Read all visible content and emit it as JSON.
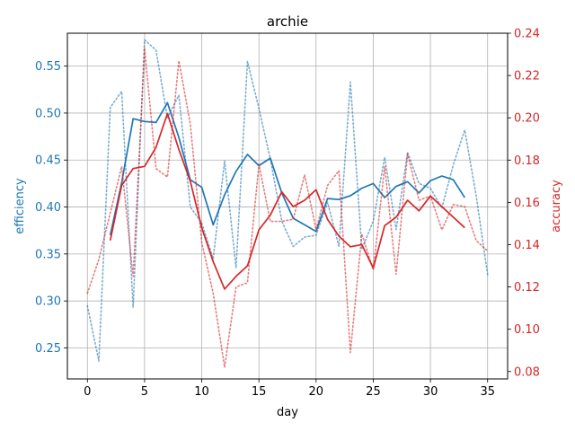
{
  "chart_data": {
    "type": "line",
    "title": "archie",
    "xlabel": "day",
    "ylabel_left": "efficiency",
    "ylabel_right": "accuracy",
    "xlim": [
      -1.75,
      36.75
    ],
    "ylim_left": [
      0.217,
      0.585
    ],
    "ylim_right": [
      0.0765,
      0.24
    ],
    "x_ticks": [
      0,
      5,
      10,
      15,
      20,
      25,
      30,
      35
    ],
    "y_ticks_left": [
      0.25,
      0.3,
      0.35,
      0.4,
      0.45,
      0.5,
      0.55
    ],
    "y_ticks_right": [
      0.08,
      0.1,
      0.12,
      0.14,
      0.16,
      0.18,
      0.2,
      0.22,
      0.24
    ],
    "grid": true,
    "colors": {
      "efficiency": "#1f77b4",
      "accuracy": "#d62728"
    },
    "series": [
      {
        "axis": "left",
        "style": "dotted",
        "x": [
          0,
          1,
          2,
          3,
          4,
          5,
          6,
          7,
          8,
          9,
          10,
          11,
          12,
          13,
          14,
          15,
          16,
          17,
          18,
          19,
          20,
          21,
          22,
          23,
          24,
          25,
          26,
          27,
          28,
          29,
          30,
          31,
          32,
          33,
          34,
          35
        ],
        "values": [
          0.295,
          0.236,
          0.506,
          0.523,
          0.293,
          0.578,
          0.567,
          0.495,
          0.519,
          0.4,
          0.383,
          0.345,
          0.449,
          0.335,
          0.555,
          0.505,
          0.451,
          0.385,
          0.358,
          0.368,
          0.37,
          0.405,
          0.358,
          0.533,
          0.355,
          0.385,
          0.453,
          0.376,
          0.458,
          0.425,
          0.42,
          0.399,
          0.445,
          0.482,
          0.412,
          0.328
        ]
      },
      {
        "axis": "left",
        "style": "solid",
        "x": [
          2,
          3,
          4,
          5,
          6,
          7,
          8,
          9,
          10,
          11,
          12,
          13,
          14,
          15,
          16,
          17,
          18,
          19,
          20,
          21,
          22,
          23,
          24,
          25,
          26,
          27,
          28,
          29,
          30,
          31,
          32,
          33
        ],
        "values": [
          0.37,
          0.426,
          0.494,
          0.491,
          0.49,
          0.511,
          0.474,
          0.429,
          0.421,
          0.381,
          0.413,
          0.438,
          0.456,
          0.444,
          0.452,
          0.415,
          0.388,
          0.381,
          0.374,
          0.409,
          0.408,
          0.412,
          0.42,
          0.425,
          0.41,
          0.422,
          0.427,
          0.415,
          0.428,
          0.433,
          0.429,
          0.41
        ]
      },
      {
        "axis": "right",
        "style": "dotted",
        "x": [
          0,
          1,
          2,
          3,
          4,
          5,
          6,
          7,
          8,
          9,
          10,
          11,
          12,
          13,
          14,
          15,
          16,
          17,
          18,
          19,
          20,
          21,
          22,
          23,
          24,
          25,
          26,
          27,
          28,
          29,
          30,
          31,
          32,
          33,
          34,
          35
        ],
        "values": [
          0.117,
          0.133,
          0.155,
          0.177,
          0.125,
          0.233,
          0.176,
          0.172,
          0.227,
          0.197,
          0.141,
          0.117,
          0.082,
          0.12,
          0.122,
          0.178,
          0.151,
          0.151,
          0.152,
          0.173,
          0.147,
          0.168,
          0.175,
          0.089,
          0.145,
          0.128,
          0.177,
          0.126,
          0.183,
          0.161,
          0.163,
          0.147,
          0.159,
          0.158,
          0.142,
          0.137
        ]
      },
      {
        "axis": "right",
        "style": "solid",
        "x": [
          2,
          3,
          4,
          5,
          6,
          7,
          8,
          9,
          10,
          11,
          12,
          13,
          14,
          15,
          16,
          17,
          18,
          19,
          20,
          21,
          22,
          23,
          24,
          25,
          26,
          27,
          28,
          29,
          30,
          31,
          32,
          33
        ],
        "values": [
          0.142,
          0.168,
          0.176,
          0.177,
          0.186,
          0.202,
          0.185,
          0.17,
          0.148,
          0.132,
          0.119,
          0.125,
          0.13,
          0.147,
          0.154,
          0.165,
          0.158,
          0.161,
          0.166,
          0.152,
          0.144,
          0.139,
          0.14,
          0.129,
          0.149,
          0.153,
          0.161,
          0.156,
          0.163,
          0.158,
          0.153,
          0.148
        ]
      }
    ]
  }
}
